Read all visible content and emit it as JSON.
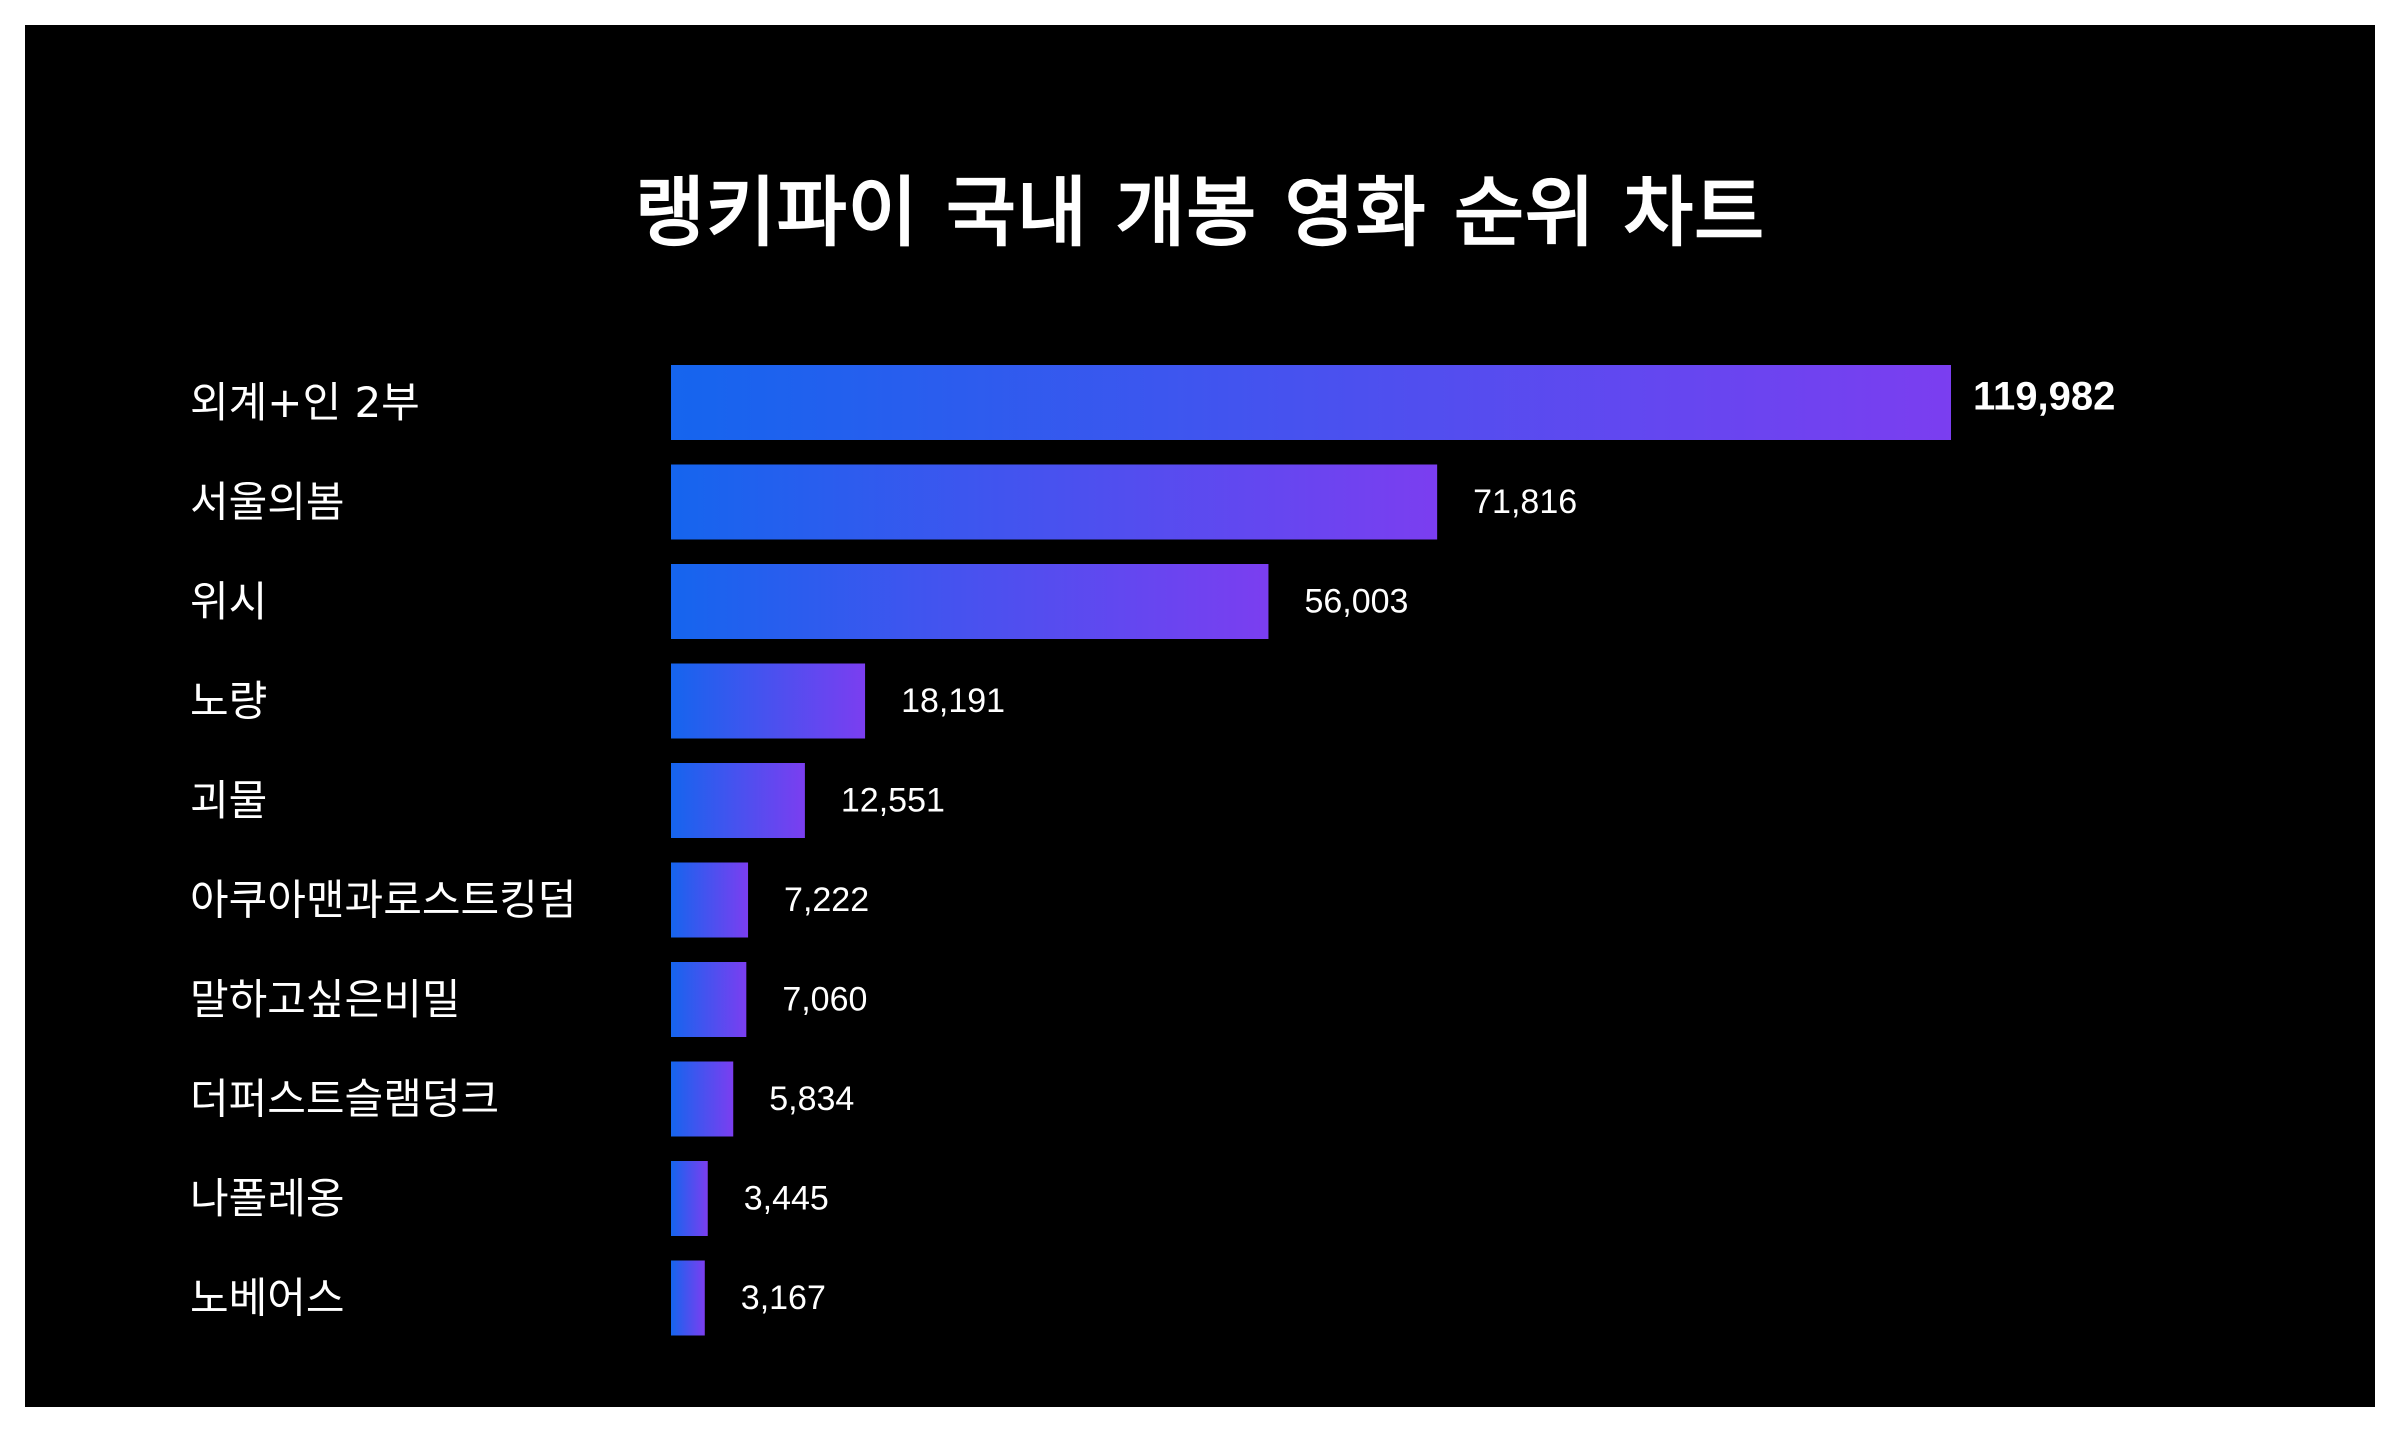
{
  "chart_data": {
    "type": "bar",
    "orientation": "horizontal",
    "title": "랭키파이 국내 개봉 영화 순위 차트",
    "categories": [
      "외계+인 2부",
      "서울의봄",
      "위시",
      "노량",
      "괴물",
      "아쿠아맨과로스트킹덤",
      "말하고싶은비밀",
      "더퍼스트슬램덩크",
      "나폴레옹",
      "노베어스"
    ],
    "values": [
      119982,
      71816,
      56003,
      18191,
      12551,
      7222,
      7060,
      5834,
      3445,
      3167
    ],
    "value_labels": [
      "119,982",
      "71,816",
      "56,003",
      "18,191",
      "12,551",
      "7,222",
      "7,060",
      "5,834",
      "3,445",
      "3,167"
    ],
    "xlabel": "",
    "ylabel": "",
    "xlim": [
      0,
      119982
    ],
    "grid": false,
    "legend": "none",
    "colors": {
      "background": "#000000",
      "gradient_start": "#1565ee",
      "gradient_end": "#7b3ef0",
      "text": "#ffffff"
    }
  }
}
